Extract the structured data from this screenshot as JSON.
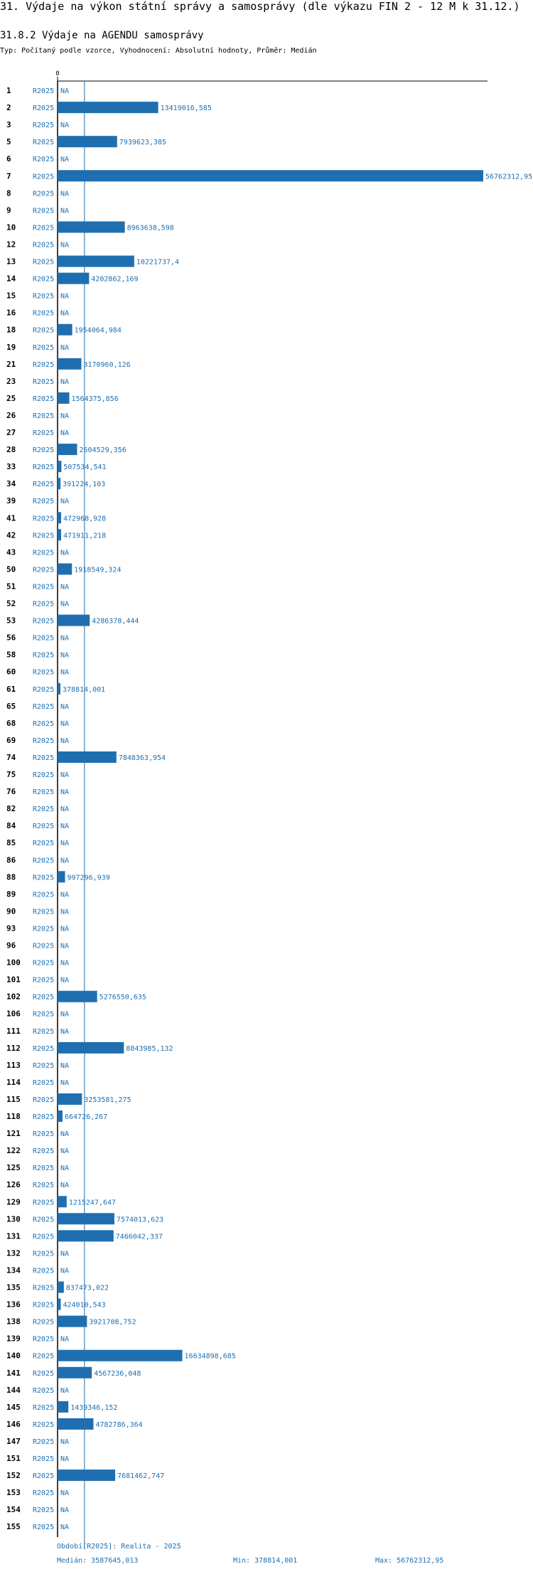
{
  "header": {
    "title": "31. Výdaje na výkon státní správy a samosprávy (dle výkazu FIN 2 - 12 M k 31.12.)",
    "subtitle": "31.8.2 Výdaje na AGENDU samosprávy",
    "type_line": "Typ: Počítaný podle vzorce, Vyhodnocení: Absolutní hodnoty, Průměr: Medián"
  },
  "colors": {
    "bar": "#1f6fb0",
    "text": "#1f6fb0",
    "axis": "#000000",
    "median": "#1f6fb0"
  },
  "chart_data": {
    "type": "bar",
    "orientation": "horizontal",
    "xlim": [
      0,
      56762312.95
    ],
    "zero_label": "0",
    "period_label": "R2025",
    "na_label": "NA",
    "median": 3587645.013,
    "categories": [
      "1",
      "2",
      "3",
      "5",
      "6",
      "7",
      "8",
      "9",
      "10",
      "12",
      "13",
      "14",
      "15",
      "16",
      "18",
      "19",
      "21",
      "23",
      "25",
      "26",
      "27",
      "28",
      "33",
      "34",
      "39",
      "41",
      "42",
      "43",
      "50",
      "51",
      "52",
      "53",
      "56",
      "58",
      "60",
      "61",
      "65",
      "68",
      "69",
      "74",
      "75",
      "76",
      "82",
      "84",
      "85",
      "86",
      "88",
      "89",
      "90",
      "93",
      "96",
      "100",
      "101",
      "102",
      "106",
      "111",
      "112",
      "113",
      "114",
      "115",
      "118",
      "121",
      "122",
      "125",
      "126",
      "129",
      "130",
      "131",
      "132",
      "134",
      "135",
      "136",
      "138",
      "139",
      "140",
      "141",
      "144",
      "145",
      "146",
      "147",
      "151",
      "152",
      "153",
      "154",
      "155"
    ],
    "values": [
      null,
      13419016.585,
      null,
      7939623.385,
      null,
      56762312.95,
      null,
      null,
      8963638.598,
      null,
      10221737.4,
      4202862.169,
      null,
      null,
      1954064.984,
      null,
      3170960.126,
      null,
      1564375.856,
      null,
      null,
      2604529.356,
      507534.541,
      391224.103,
      null,
      472968.928,
      471911.218,
      null,
      1918549.324,
      null,
      null,
      4286378.444,
      null,
      null,
      null,
      378814.001,
      null,
      null,
      null,
      7848363.954,
      null,
      null,
      null,
      null,
      null,
      null,
      997296.939,
      null,
      null,
      null,
      null,
      null,
      null,
      5276550.635,
      null,
      null,
      8843985.132,
      null,
      null,
      3253581.275,
      664726.267,
      null,
      null,
      null,
      null,
      1215247.647,
      7574013.623,
      7466042.337,
      null,
      null,
      837473.022,
      424010.543,
      3921708.752,
      null,
      16634898.685,
      4567236.048,
      null,
      1439346.152,
      4782786.364,
      null,
      null,
      7681462.747,
      null,
      null,
      null
    ],
    "labels": [
      "NA",
      "13419016,585",
      "NA",
      "7939623,385",
      "NA",
      "56762312,95",
      "NA",
      "NA",
      "8963638,598",
      "NA",
      "10221737,4",
      "4202862,169",
      "NA",
      "NA",
      "1954064,984",
      "NA",
      "3170960,126",
      "NA",
      "1564375,856",
      "NA",
      "NA",
      "2604529,356",
      "507534,541",
      "391224,103",
      "NA",
      "472968,928",
      "471911,218",
      "NA",
      "1918549,324",
      "NA",
      "NA",
      "4286378,444",
      "NA",
      "NA",
      "NA",
      "378814,001",
      "NA",
      "NA",
      "NA",
      "7848363,954",
      "NA",
      "NA",
      "NA",
      "NA",
      "NA",
      "NA",
      "997296,939",
      "NA",
      "NA",
      "NA",
      "NA",
      "NA",
      "NA",
      "5276550,635",
      "NA",
      "NA",
      "8843985,132",
      "NA",
      "NA",
      "3253581,275",
      "664726,267",
      "NA",
      "NA",
      "NA",
      "NA",
      "1215247,647",
      "7574013,623",
      "7466042,337",
      "NA",
      "NA",
      "837473,022",
      "424010,543",
      "3921708,752",
      "NA",
      "16634898,685",
      "4567236,048",
      "NA",
      "1439346,152",
      "4782786,364",
      "NA",
      "NA",
      "7681462,747",
      "NA",
      "NA",
      "NA"
    ]
  },
  "footer": {
    "period": "Období[R2025]: Realita - 2025",
    "median": "Medián: 3587645,013",
    "min": "Min: 378814,001",
    "max": "Max: 56762312,95"
  }
}
